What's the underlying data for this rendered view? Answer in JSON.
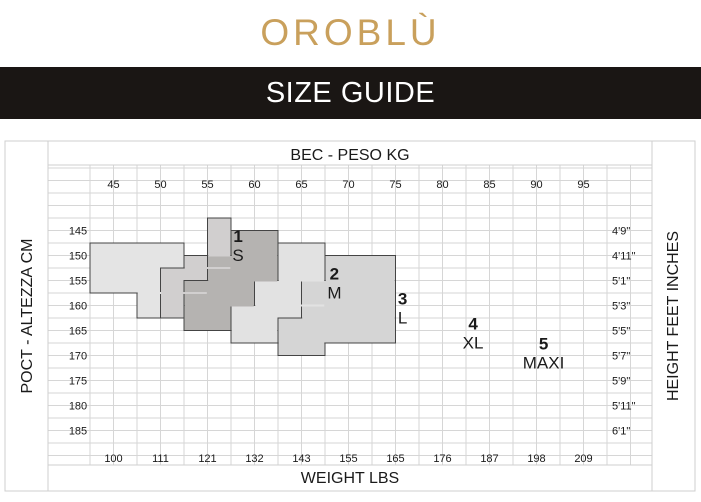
{
  "brand": "OROBLÙ",
  "banner": "SIZE GUIDE",
  "chart_data": {
    "type": "table",
    "top_axis_label": "BEC - PESO KG",
    "bottom_axis_label": "WEIGHT LBS",
    "left_axis_label": "POCT - ALTEZZA CM",
    "right_axis_label": "HEIGHT FEET INCHES",
    "weight_kg": [
      "45",
      "50",
      "55",
      "60",
      "65",
      "70",
      "75",
      "80",
      "85",
      "90",
      "95"
    ],
    "weight_lbs": [
      "100",
      "111",
      "121",
      "132",
      "143",
      "155",
      "165",
      "176",
      "187",
      "198",
      "209"
    ],
    "height_cm": [
      "145",
      "150",
      "155",
      "160",
      "165",
      "170",
      "175",
      "180",
      "185"
    ],
    "height_ft": [
      "4'9\"",
      "4'11\"",
      "5'1\"",
      "5'3\"",
      "5'5\"",
      "5'7\"",
      "5'9\"",
      "5'11\"",
      "6'1\""
    ],
    "sizes": [
      {
        "number": "1",
        "label": "S",
        "color": "#e4e4e4",
        "rows": [
          [
            2,
            6,
            0,
            4
          ],
          [
            6,
            8,
            2,
            6
          ]
        ]
      },
      {
        "number": "2",
        "label": "M",
        "color": "#d1cfcf",
        "rows": [
          [
            0,
            3,
            5,
            6
          ],
          [
            3,
            4,
            4,
            6
          ],
          [
            4,
            6,
            3,
            6
          ],
          [
            6,
            8,
            3,
            5
          ]
        ]
      },
      {
        "number": "3",
        "label": "L",
        "color": "#b5b3b1",
        "rows": [
          [
            1,
            3,
            6,
            8
          ],
          [
            3,
            5,
            5,
            8
          ],
          [
            5,
            7,
            4,
            8
          ],
          [
            7,
            9,
            4,
            7
          ]
        ]
      },
      {
        "number": "4",
        "label": "XL",
        "color": "#e2e2e2",
        "rows": [
          [
            2,
            5,
            8,
            10
          ],
          [
            5,
            7,
            7,
            10
          ],
          [
            7,
            9,
            6,
            10
          ],
          [
            9,
            10,
            6,
            8
          ]
        ]
      },
      {
        "number": "5",
        "label": "MAXI",
        "color": "#d5d5d5",
        "rows": [
          [
            3,
            5,
            10,
            13
          ],
          [
            5,
            8,
            9,
            13
          ],
          [
            8,
            10,
            8,
            13
          ],
          [
            10,
            11,
            8,
            10
          ]
        ]
      }
    ]
  }
}
